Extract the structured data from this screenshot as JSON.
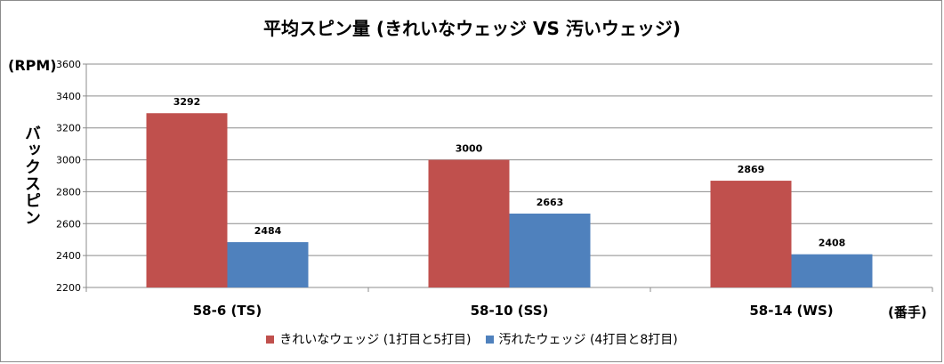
{
  "chart_data": {
    "type": "bar",
    "title": "平均スピン量 (きれいなウェッジ VS 汚いウェッジ)",
    "ylabel": "バックスピン",
    "yunit": "(RPM)",
    "xunit": "(番手)",
    "categories": [
      "58-6 (TS)",
      "58-10 (SS)",
      "58-14 (WS)"
    ],
    "ylim": [
      2200,
      3600
    ],
    "yticks": [
      2200,
      2400,
      2600,
      2800,
      3000,
      3200,
      3400,
      3600
    ],
    "grid": true,
    "legend_position": "bottom",
    "series": [
      {
        "name": "きれいなウェッジ (1打目と5打目)",
        "color": "#c0504d",
        "values": [
          3292,
          3000,
          2869
        ]
      },
      {
        "name": "汚れたウェッジ (4打目と8打目)",
        "color": "#4f81bd",
        "values": [
          2484,
          2663,
          2408
        ]
      }
    ]
  }
}
